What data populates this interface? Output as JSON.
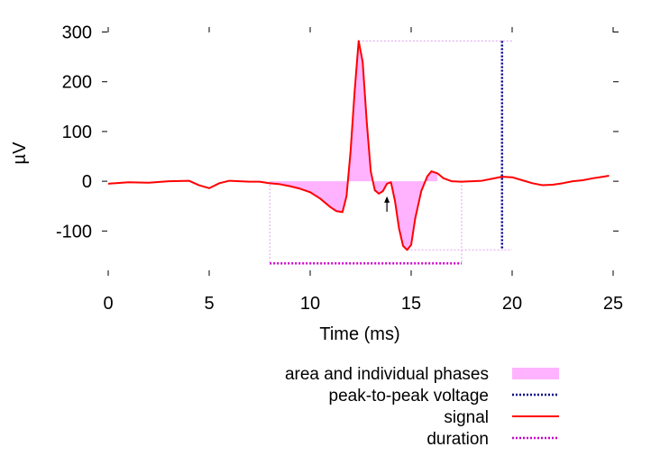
{
  "chart_data": {
    "type": "line",
    "xlabel": "Time (ms)",
    "ylabel": "µV",
    "xlim": [
      0,
      25
    ],
    "ylim": [
      -190,
      310
    ],
    "x_ticks": [
      0,
      5,
      10,
      15,
      20,
      25
    ],
    "y_ticks": [
      -100,
      0,
      100,
      200,
      300
    ],
    "grid": false,
    "legend_position": "bottom-right",
    "legend": [
      {
        "label": "area and individual phases",
        "style": "fill",
        "color": "#ffb3ff"
      },
      {
        "label": "peak-to-peak voltage",
        "style": "dotted",
        "color": "#00008b"
      },
      {
        "label": "signal",
        "style": "solid",
        "color": "#ff0000"
      },
      {
        "label": "duration",
        "style": "dotted",
        "color": "#cc00cc"
      }
    ],
    "series": [
      {
        "name": "signal",
        "color": "#ff0000",
        "x": [
          0,
          1,
          2,
          3,
          4,
          4.5,
          5,
          5.5,
          6,
          7,
          7.5,
          8,
          8.5,
          9,
          9.5,
          10,
          10.5,
          11,
          11.3,
          11.6,
          11.8,
          12.0,
          12.2,
          12.4,
          12.6,
          12.8,
          13.0,
          13.2,
          13.4,
          13.6,
          13.8,
          14.0,
          14.2,
          14.4,
          14.6,
          14.8,
          15.0,
          15.2,
          15.5,
          15.8,
          16.0,
          16.3,
          16.6,
          17.0,
          17.5,
          18,
          18.5,
          19,
          19.5,
          20,
          20.5,
          21,
          21.5,
          22,
          22.5,
          23,
          23.5,
          24,
          24.5,
          24.8
        ],
        "y": [
          -5,
          -2,
          -3,
          0,
          1,
          -8,
          -14,
          -4,
          1,
          -1,
          -1,
          -4,
          -6,
          -10,
          -15,
          -22,
          -35,
          -52,
          -60,
          -62,
          -30,
          60,
          180,
          282,
          240,
          120,
          20,
          -18,
          -25,
          -20,
          -5,
          -2,
          -40,
          -95,
          -130,
          -138,
          -128,
          -75,
          -20,
          10,
          20,
          16,
          6,
          0,
          -1,
          0,
          1,
          5,
          9,
          8,
          2,
          -4,
          -8,
          -7,
          -4,
          0,
          2,
          6,
          9,
          11
        ]
      }
    ],
    "area_phases_range": [
      8,
      16.5
    ],
    "peak_to_peak": {
      "x": 19.5,
      "max": 282,
      "min": -138
    },
    "duration": {
      "start": 8,
      "end": 17.5,
      "y": -165
    },
    "annotation": {
      "type": "arrow",
      "x": 13.8,
      "y": -25
    }
  }
}
